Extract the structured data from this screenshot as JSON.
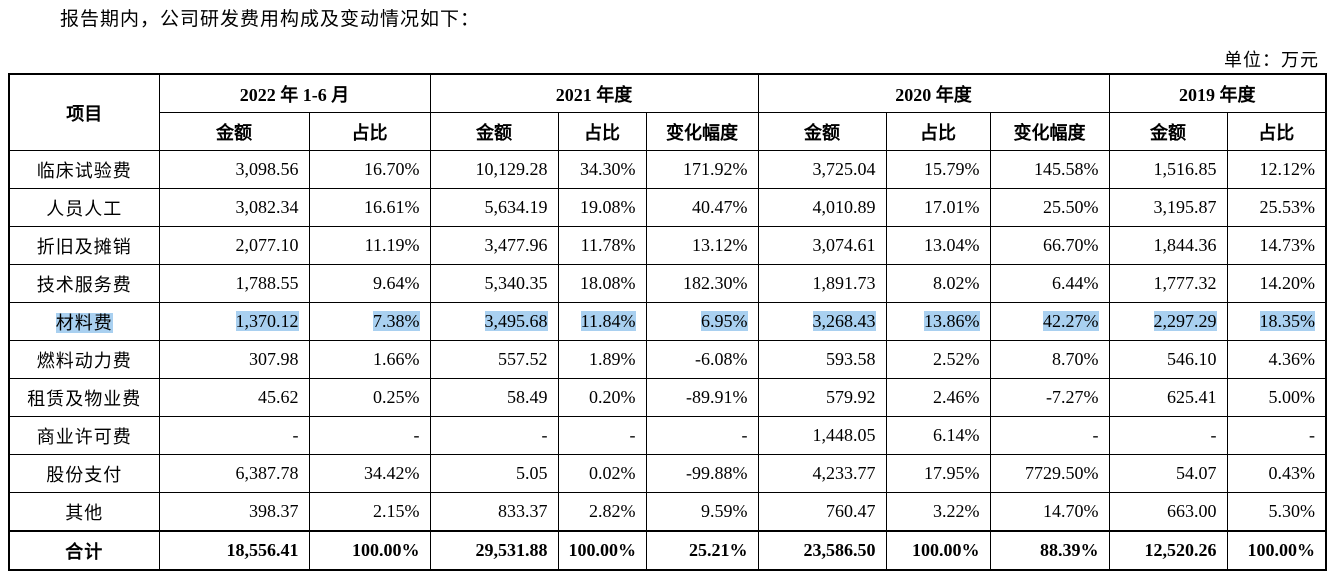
{
  "intro": "报告期内，公司研发费用构成及变动情况如下：",
  "unit": "单位：万元",
  "table": {
    "item_header": "项目",
    "periods": [
      "2022 年 1-6 月",
      "2021 年度",
      "2020 年度",
      "2019 年度"
    ],
    "subheaders": [
      "金额",
      "占比",
      "金额",
      "占比",
      "变化幅度",
      "金额",
      "占比",
      "变化幅度",
      "金额",
      "占比"
    ],
    "rows": [
      {
        "label": "临床试验费",
        "values": [
          "3,098.56",
          "16.70%",
          "10,129.28",
          "34.30%",
          "171.92%",
          "3,725.04",
          "15.79%",
          "145.58%",
          "1,516.85",
          "12.12%"
        ],
        "highlighted": false
      },
      {
        "label": "人员人工",
        "values": [
          "3,082.34",
          "16.61%",
          "5,634.19",
          "19.08%",
          "40.47%",
          "4,010.89",
          "17.01%",
          "25.50%",
          "3,195.87",
          "25.53%"
        ],
        "highlighted": false
      },
      {
        "label": "折旧及摊销",
        "values": [
          "2,077.10",
          "11.19%",
          "3,477.96",
          "11.78%",
          "13.12%",
          "3,074.61",
          "13.04%",
          "66.70%",
          "1,844.36",
          "14.73%"
        ],
        "highlighted": false
      },
      {
        "label": "技术服务费",
        "values": [
          "1,788.55",
          "9.64%",
          "5,340.35",
          "18.08%",
          "182.30%",
          "1,891.73",
          "8.02%",
          "6.44%",
          "1,777.32",
          "14.20%"
        ],
        "highlighted": false
      },
      {
        "label": "材料费",
        "values": [
          "1,370.12",
          "7.38%",
          "3,495.68",
          "11.84%",
          "6.95%",
          "3,268.43",
          "13.86%",
          "42.27%",
          "2,297.29",
          "18.35%"
        ],
        "highlighted": true
      },
      {
        "label": "燃料动力费",
        "values": [
          "307.98",
          "1.66%",
          "557.52",
          "1.89%",
          "-6.08%",
          "593.58",
          "2.52%",
          "8.70%",
          "546.10",
          "4.36%"
        ],
        "highlighted": false
      },
      {
        "label": "租赁及物业费",
        "values": [
          "45.62",
          "0.25%",
          "58.49",
          "0.20%",
          "-89.91%",
          "579.92",
          "2.46%",
          "-7.27%",
          "625.41",
          "5.00%"
        ],
        "highlighted": false
      },
      {
        "label": "商业许可费",
        "values": [
          "-",
          "-",
          "-",
          "-",
          "-",
          "1,448.05",
          "6.14%",
          "-",
          "-",
          "-"
        ],
        "highlighted": false
      },
      {
        "label": "股份支付",
        "values": [
          "6,387.78",
          "34.42%",
          "5.05",
          "0.02%",
          "-99.88%",
          "4,233.77",
          "17.95%",
          "7729.50%",
          "54.07",
          "0.43%"
        ],
        "highlighted": false
      },
      {
        "label": "其他",
        "values": [
          "398.37",
          "2.15%",
          "833.37",
          "2.82%",
          "9.59%",
          "760.47",
          "3.22%",
          "14.70%",
          "663.00",
          "5.30%"
        ],
        "highlighted": false
      }
    ],
    "total": {
      "label": "合计",
      "values": [
        "18,556.41",
        "100.00%",
        "29,531.88",
        "100.00%",
        "25.21%",
        "23,586.50",
        "100.00%",
        "88.39%",
        "12,520.26",
        "100.00%"
      ]
    }
  }
}
